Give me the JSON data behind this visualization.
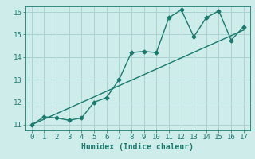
{
  "title": "",
  "xlabel": "Humidex (Indice chaleur)",
  "ylabel": "",
  "background_color": "#ceecea",
  "grid_color": "#aad4d0",
  "line_color": "#1a7a6e",
  "xlim": [
    -0.5,
    17.5
  ],
  "ylim": [
    10.75,
    16.25
  ],
  "xticks": [
    0,
    1,
    2,
    3,
    4,
    5,
    6,
    7,
    8,
    9,
    10,
    11,
    12,
    13,
    14,
    15,
    16,
    17
  ],
  "yticks": [
    11,
    12,
    13,
    14,
    15,
    16
  ],
  "curve_x": [
    0,
    1,
    2,
    3,
    4,
    5,
    6,
    7,
    8,
    9,
    10,
    11,
    12,
    13,
    14,
    15,
    16,
    17
  ],
  "curve_y": [
    11.0,
    11.35,
    11.3,
    11.2,
    11.3,
    12.0,
    12.2,
    13.0,
    14.2,
    14.25,
    14.2,
    15.75,
    16.1,
    14.9,
    15.75,
    16.05,
    14.75,
    15.35
  ],
  "line_x": [
    0,
    17
  ],
  "line_y": [
    11.0,
    15.2
  ],
  "font_size": 7,
  "tick_font_size": 6.5,
  "marker": "D",
  "marker_size": 2.5,
  "line_width": 1.0
}
